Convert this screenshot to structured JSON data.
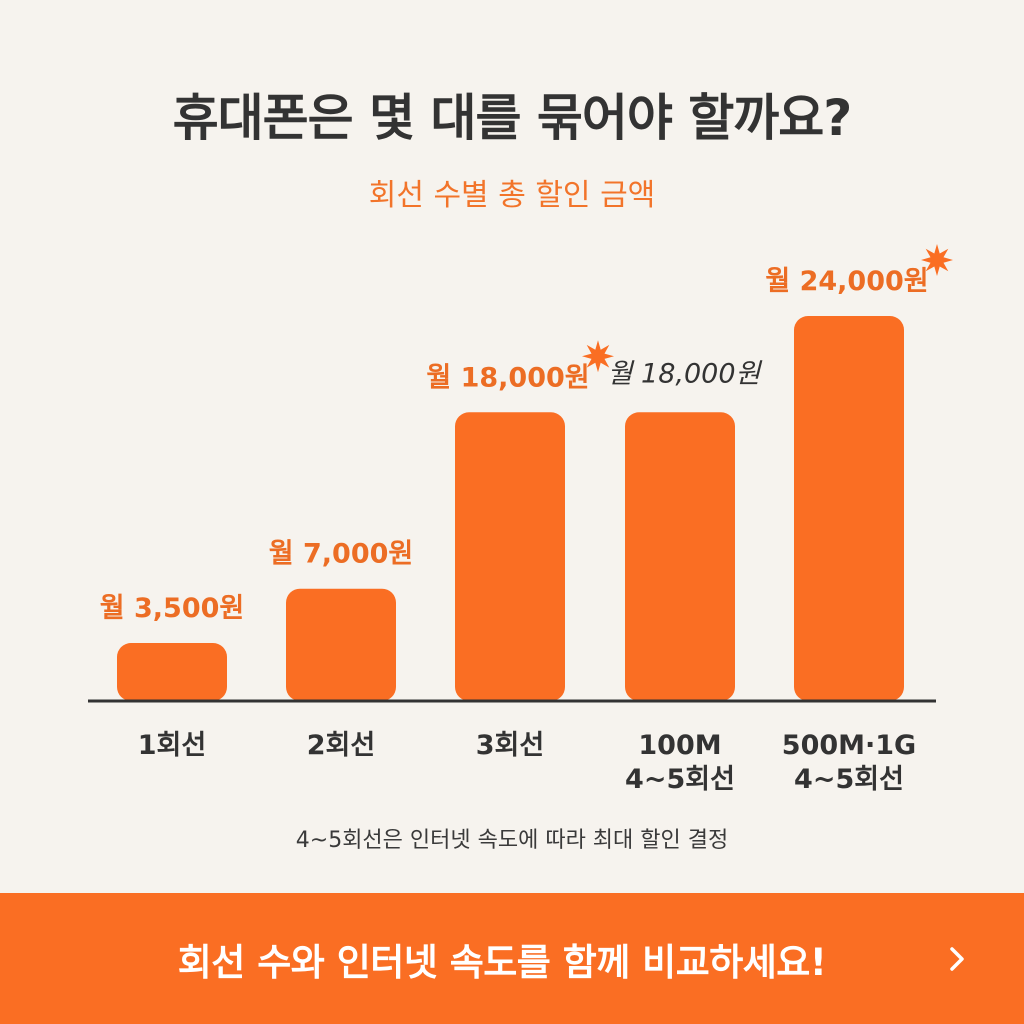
{
  "header": {
    "title": "휴대폰은 몇 대를 묶어야 할까요?",
    "subtitle": "회선 수별 총 할인 금액"
  },
  "chart_data": {
    "type": "bar",
    "categories": [
      "1회선",
      "2회선",
      "3회선",
      "100M\n4~5회선",
      "500M·1G\n4~5회선"
    ],
    "values": [
      3500,
      7000,
      18000,
      18000,
      24000
    ],
    "data_labels": [
      "월 3,500원",
      "월 7,000원",
      "월 18,000원",
      "월 18,000원",
      "월 24,000원"
    ],
    "highlighted": [
      false,
      false,
      true,
      false,
      true
    ],
    "label_italic": [
      false,
      false,
      false,
      true,
      false
    ],
    "ylim": [
      0,
      24000
    ],
    "grid": false,
    "colors": {
      "bar": "#fa6e23",
      "label": "#ec6d24",
      "label_alt": "#333333",
      "axis": "#333333"
    }
  },
  "note": "4~5회선은 인터넷 속도에 따라 최대 할인 결정",
  "cta": {
    "label": "회선 수와 인터넷 속도를 함께 비교하세요!",
    "arrow_icon": "chevron-right-icon"
  }
}
